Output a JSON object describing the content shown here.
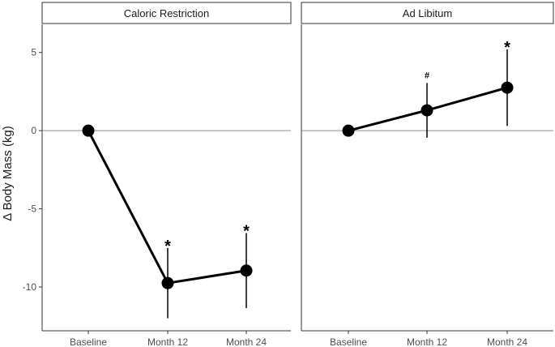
{
  "chart_data": {
    "type": "line",
    "ylabel": "Δ Body Mass (kg)",
    "ylim": [
      -12.8,
      6.8
    ],
    "yticks": [
      5,
      0,
      -5,
      -10
    ],
    "ytick_labels": [
      "5",
      "0",
      "-5",
      "-10"
    ],
    "categories": [
      "Baseline",
      "Month 12",
      "Month 24"
    ],
    "reference_line": 0,
    "colors": {
      "line": "#000000",
      "reference": "#a6a6a6",
      "axis": "#333333"
    },
    "panels": [
      {
        "title": "Caloric Restriction",
        "values": [
          0,
          -9.75,
          -8.95
        ],
        "error_low": [
          0,
          -12.0,
          -11.35
        ],
        "error_high": [
          0,
          -7.5,
          -6.55
        ],
        "annotations": [
          "",
          "*",
          "*"
        ]
      },
      {
        "title": "Ad Libitum",
        "values": [
          0,
          1.3,
          2.75
        ],
        "error_low": [
          0,
          -0.45,
          0.3
        ],
        "error_high": [
          0,
          3.05,
          5.2
        ],
        "annotations": [
          "",
          "#",
          "*"
        ]
      }
    ]
  }
}
